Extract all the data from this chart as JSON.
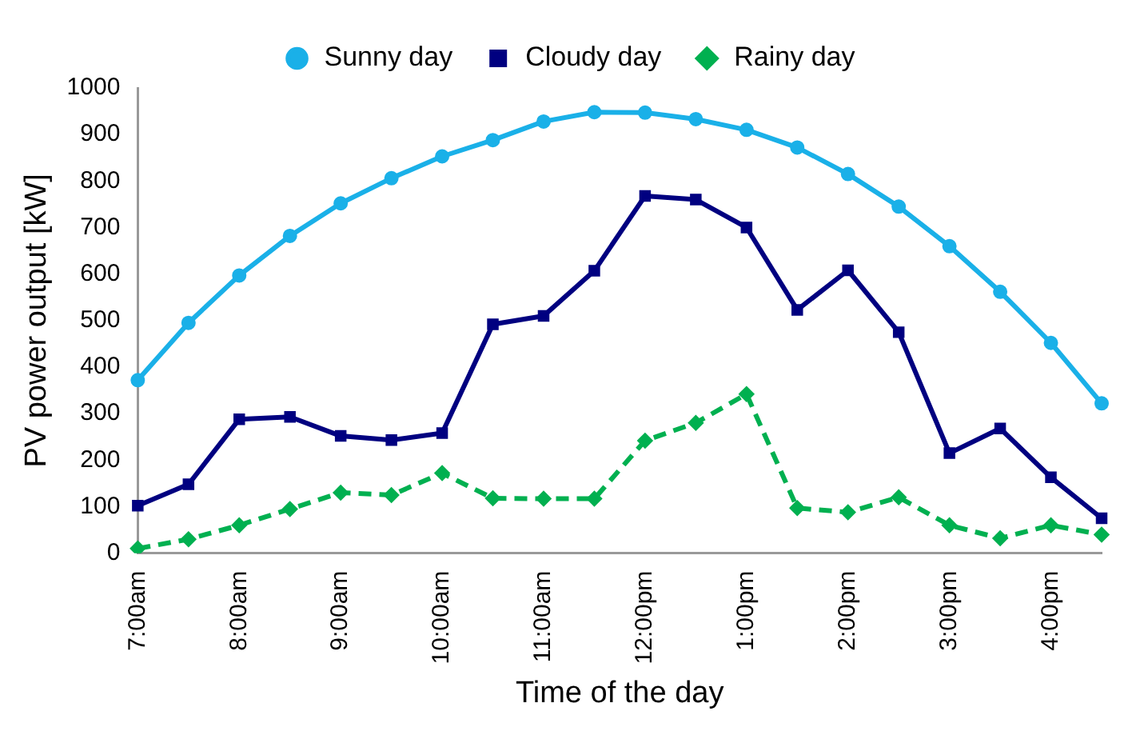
{
  "chart_data": {
    "type": "line",
    "xlabel": "Time of the day",
    "ylabel": "PV power output [kW]",
    "categories": [
      "7:00am",
      null,
      "8:00am",
      null,
      "9:00am",
      null,
      "10:00am",
      null,
      "11:00am",
      null,
      "12:00pm",
      null,
      "1:00pm",
      null,
      "2:00pm",
      null,
      "3:00pm",
      null,
      "4:00pm",
      null
    ],
    "series": [
      {
        "name": "Sunny day",
        "color": "#1ab0e8",
        "marker": "circle",
        "line_style": "solid",
        "values": [
          372,
          495,
          597,
          682,
          752,
          806,
          853,
          888,
          928,
          948,
          947,
          933,
          910,
          872,
          815,
          745,
          660,
          562,
          452,
          322
        ]
      },
      {
        "name": "Cloudy day",
        "color": "#000080",
        "marker": "square",
        "line_style": "solid",
        "values": [
          102,
          148,
          288,
          293,
          252,
          243,
          258,
          492,
          510,
          607,
          768,
          760,
          700,
          523,
          608,
          475,
          215,
          268,
          163,
          75
        ]
      },
      {
        "name": "Rainy day",
        "color": "#00b050",
        "marker": "diamond",
        "line_style": "dashed",
        "values": [
          10,
          30,
          60,
          95,
          130,
          125,
          172,
          118,
          117,
          117,
          242,
          280,
          342,
          97,
          88,
          120,
          60,
          32,
          60,
          40
        ]
      }
    ],
    "ylim": [
      0,
      1000
    ],
    "yticks": [
      0,
      100,
      200,
      300,
      400,
      500,
      600,
      700,
      800,
      900,
      1000
    ],
    "grid": false,
    "legend": "top"
  }
}
